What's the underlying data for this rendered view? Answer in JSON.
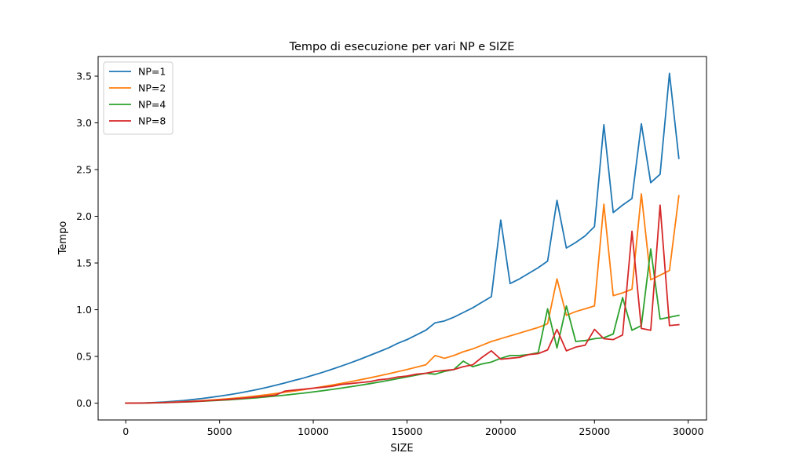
{
  "chart_data": {
    "type": "line",
    "title": "Tempo di esecuzione per vari NP e SIZE",
    "xlabel": "SIZE",
    "ylabel": "Tempo",
    "xlim": [
      -1475,
      30975
    ],
    "ylim": [
      -0.18,
      3.71
    ],
    "xticks": [
      0,
      5000,
      10000,
      15000,
      20000,
      25000,
      30000
    ],
    "yticks": [
      0.0,
      0.5,
      1.0,
      1.5,
      2.0,
      2.5,
      3.0,
      3.5
    ],
    "xtick_labels": [
      "0",
      "5000",
      "10000",
      "15000",
      "20000",
      "25000",
      "30000"
    ],
    "ytick_labels": [
      "0.0",
      "0.5",
      "1.0",
      "1.5",
      "2.0",
      "2.5",
      "3.0",
      "3.5"
    ],
    "grid": false,
    "legend_position": "top-left",
    "x": [
      0,
      500,
      1000,
      1500,
      2000,
      2500,
      3000,
      3500,
      4000,
      4500,
      5000,
      5500,
      6000,
      6500,
      7000,
      7500,
      8000,
      8500,
      9000,
      9500,
      10000,
      10500,
      11000,
      11500,
      12000,
      12500,
      13000,
      13500,
      14000,
      14500,
      15000,
      15500,
      16000,
      16500,
      17000,
      17500,
      18000,
      18500,
      19000,
      19500,
      20000,
      20500,
      21000,
      21500,
      22000,
      22500,
      23000,
      23500,
      24000,
      24500,
      25000,
      25500,
      26000,
      26500,
      27000,
      27500,
      28000,
      28500,
      29000,
      29500
    ],
    "series": [
      {
        "name": "NP=1",
        "color": "#1f77b4",
        "values": [
          0.0,
          0.001,
          0.003,
          0.007,
          0.012,
          0.019,
          0.027,
          0.037,
          0.048,
          0.061,
          0.075,
          0.09,
          0.107,
          0.126,
          0.146,
          0.168,
          0.192,
          0.217,
          0.244,
          0.27,
          0.3,
          0.33,
          0.363,
          0.397,
          0.433,
          0.47,
          0.51,
          0.55,
          0.59,
          0.64,
          0.68,
          0.73,
          0.78,
          0.86,
          0.88,
          0.92,
          0.97,
          1.02,
          1.08,
          1.14,
          1.96,
          1.28,
          1.33,
          1.39,
          1.45,
          1.52,
          2.17,
          1.66,
          1.72,
          1.79,
          1.89,
          2.98,
          2.04,
          2.12,
          2.19,
          2.99,
          2.36,
          2.45,
          3.53,
          2.62
        ]
      },
      {
        "name": "NP=2",
        "color": "#ff7f0e",
        "values": [
          0.0,
          0.001,
          0.002,
          0.004,
          0.007,
          0.011,
          0.015,
          0.02,
          0.026,
          0.033,
          0.04,
          0.048,
          0.057,
          0.067,
          0.078,
          0.09,
          0.103,
          0.117,
          0.13,
          0.145,
          0.16,
          0.177,
          0.194,
          0.212,
          0.231,
          0.25,
          0.27,
          0.292,
          0.314,
          0.337,
          0.36,
          0.385,
          0.41,
          0.51,
          0.48,
          0.51,
          0.55,
          0.58,
          0.62,
          0.66,
          0.69,
          0.72,
          0.75,
          0.78,
          0.81,
          0.85,
          1.33,
          0.94,
          0.98,
          1.01,
          1.04,
          2.13,
          1.15,
          1.18,
          1.22,
          2.24,
          1.32,
          1.37,
          1.42,
          2.22
        ]
      },
      {
        "name": "NP=4",
        "color": "#2ca02c",
        "values": [
          0.0,
          0.001,
          0.002,
          0.003,
          0.005,
          0.008,
          0.011,
          0.015,
          0.02,
          0.025,
          0.03,
          0.036,
          0.043,
          0.05,
          0.058,
          0.067,
          0.076,
          0.086,
          0.097,
          0.108,
          0.12,
          0.133,
          0.147,
          0.161,
          0.176,
          0.192,
          0.208,
          0.225,
          0.243,
          0.262,
          0.281,
          0.3,
          0.32,
          0.31,
          0.34,
          0.36,
          0.45,
          0.39,
          0.42,
          0.44,
          0.48,
          0.51,
          0.51,
          0.52,
          0.54,
          1.01,
          0.59,
          1.04,
          0.66,
          0.67,
          0.69,
          0.7,
          0.74,
          1.13,
          0.78,
          0.83,
          1.65,
          0.9,
          0.92,
          0.94
        ]
      },
      {
        "name": "NP=8",
        "color": "#d62728",
        "values": [
          0.0,
          0.001,
          0.002,
          0.004,
          0.006,
          0.009,
          0.013,
          0.017,
          0.022,
          0.028,
          0.034,
          0.041,
          0.049,
          0.057,
          0.066,
          0.076,
          0.087,
          0.13,
          0.14,
          0.15,
          0.16,
          0.17,
          0.18,
          0.2,
          0.21,
          0.22,
          0.23,
          0.25,
          0.26,
          0.28,
          0.29,
          0.31,
          0.32,
          0.34,
          0.35,
          0.36,
          0.39,
          0.41,
          0.49,
          0.56,
          0.47,
          0.48,
          0.49,
          0.52,
          0.53,
          0.57,
          0.79,
          0.56,
          0.6,
          0.62,
          0.79,
          0.69,
          0.68,
          0.73,
          1.84,
          0.8,
          0.78,
          2.12,
          0.83,
          0.84
        ]
      }
    ]
  }
}
